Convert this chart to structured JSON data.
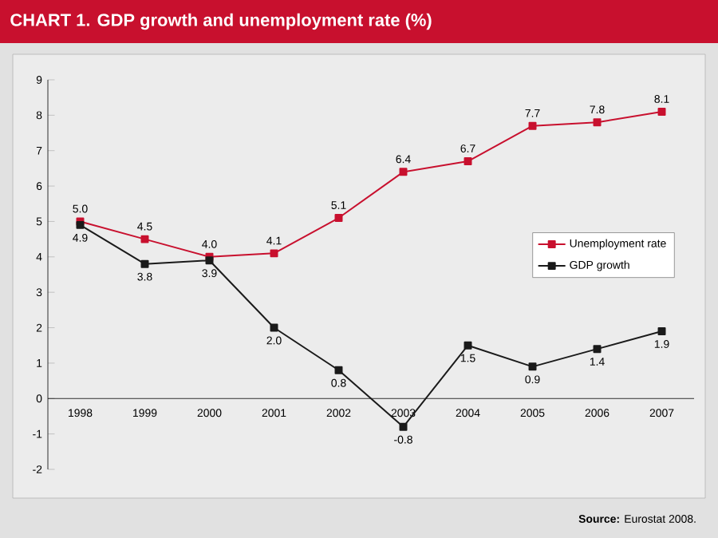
{
  "chart_data": {
    "type": "line",
    "title": "CHART 1. GDP growth and unemployment rate (%)",
    "categories": [
      "1998",
      "1999",
      "2000",
      "2001",
      "2002",
      "2003",
      "2004",
      "2005",
      "2006",
      "2007"
    ],
    "series": [
      {
        "name": "Unemployment rate",
        "color": "#c8102e",
        "values": [
          5.0,
          4.5,
          4.0,
          4.1,
          5.1,
          6.4,
          6.7,
          7.7,
          7.8,
          8.1
        ],
        "value_labels": [
          "5.0",
          "4.5",
          "4.0",
          "4.1",
          "5.1",
          "6.4",
          "6.7",
          "7.7",
          "7.8",
          "8.1"
        ]
      },
      {
        "name": "GDP growth",
        "color": "#1a1a1a",
        "values": [
          4.9,
          3.8,
          3.9,
          2.0,
          0.8,
          -0.8,
          1.5,
          0.9,
          1.4,
          1.9
        ],
        "value_labels": [
          "4.9",
          "3.8",
          "3.9",
          "2.0",
          "0.8",
          "-0.8",
          "1.5",
          "0.9",
          "1.4",
          "1.9"
        ]
      }
    ],
    "ylim": [
      -2,
      9
    ],
    "yticks": [
      -2,
      -1,
      0,
      1,
      2,
      3,
      4,
      5,
      6,
      7,
      8,
      9
    ],
    "marker": "square",
    "line_style": "solid",
    "grid": false,
    "legend": "right",
    "annotations": [
      "**Source:** Eurostat 2008."
    ]
  }
}
